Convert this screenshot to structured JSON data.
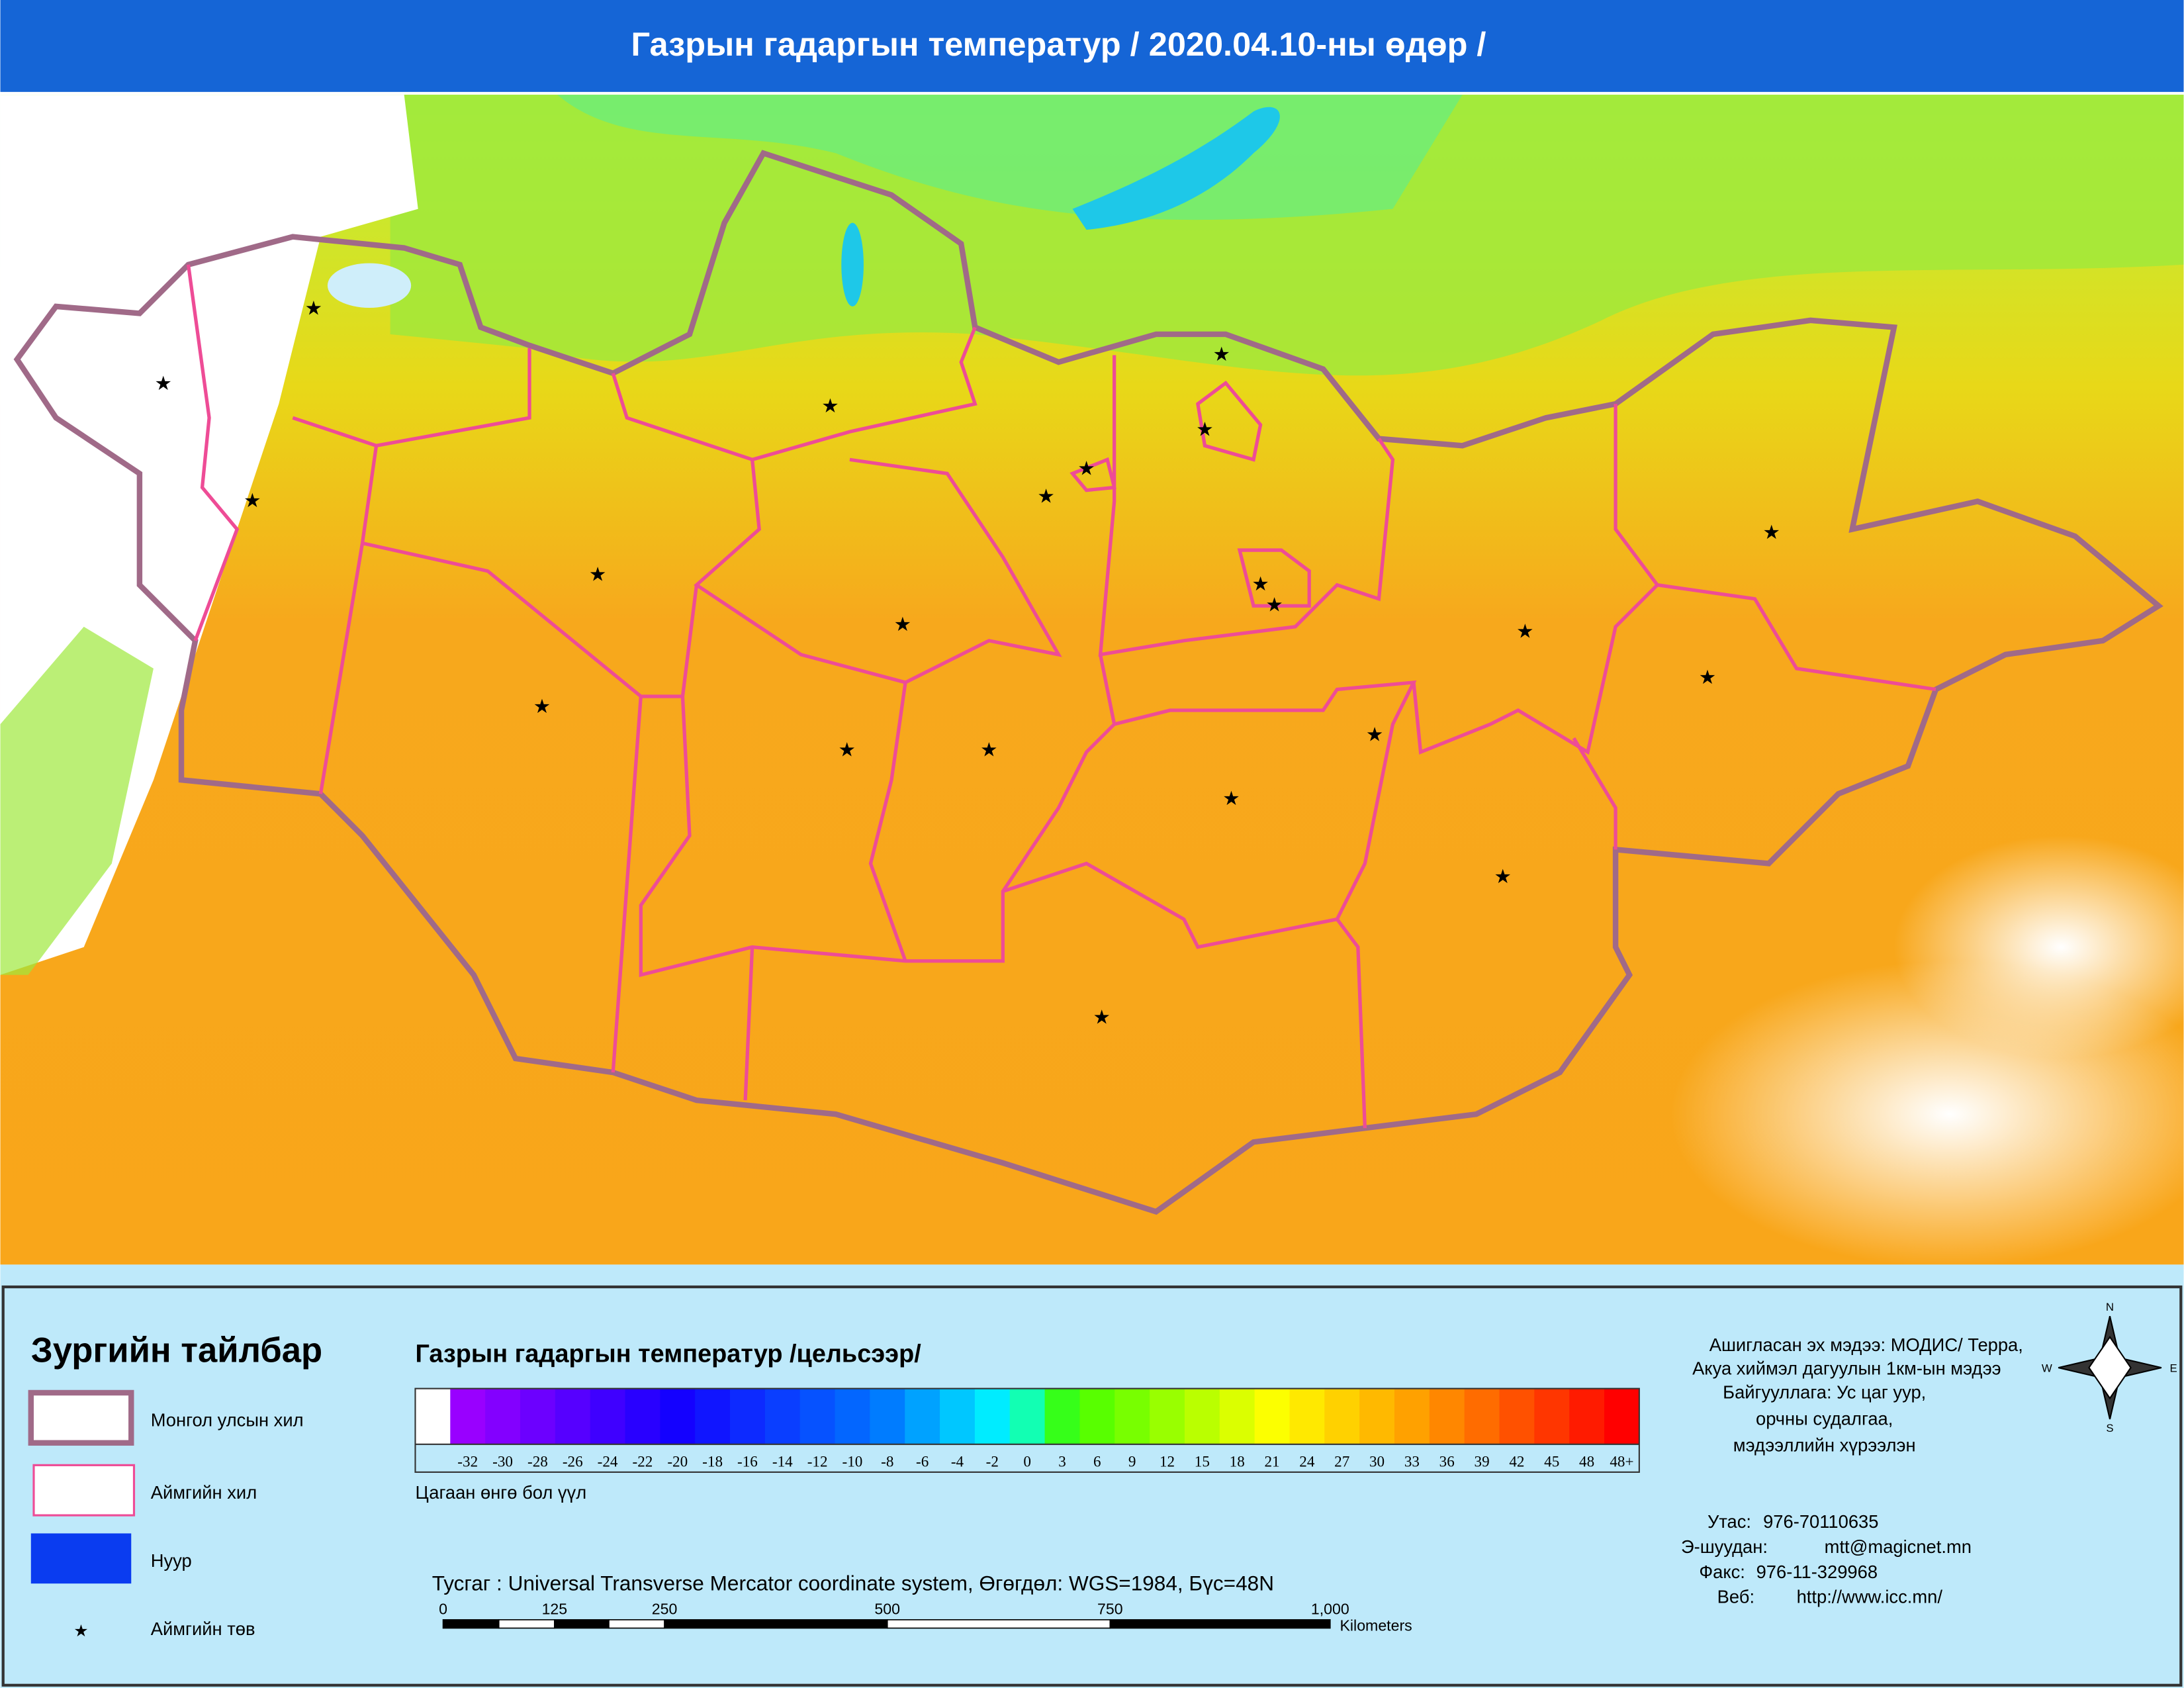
{
  "header": {
    "title": "Газрын гадаргын температур / 2020.04.10-ны өдөр /"
  },
  "legend": {
    "title": "Зургийн тайлбар",
    "items": [
      {
        "label": "Монгол улсын хил"
      },
      {
        "label": "Аймгийн хил"
      },
      {
        "label": "Нуур"
      },
      {
        "label": "Аймгийн төв"
      }
    ]
  },
  "color_scale": {
    "title": "Газрын гадаргын температур /цельсээр/",
    "labels": [
      "-32",
      "-30",
      "-28",
      "-26",
      "-24",
      "-22",
      "-20",
      "-18",
      "-16",
      "-14",
      "-12",
      "-10",
      "-8",
      "-6",
      "-4",
      "-2",
      "0",
      "3",
      "6",
      "9",
      "12",
      "15",
      "18",
      "21",
      "24",
      "27",
      "30",
      "33",
      "36",
      "39",
      "42",
      "45",
      "48",
      "48+"
    ],
    "note": "Цагаан өнгө бол үүл"
  },
  "projection": "Тусгаг : Universal Transverse Mercator coordinate system, Өгөгдөл: WGS=1984, Бүс=48N",
  "scale_bar": {
    "labels": [
      "0",
      "125",
      "250",
      "500",
      "750",
      "1,000"
    ],
    "unit": "Kilometers"
  },
  "compass": {
    "n": "N",
    "e": "E",
    "s": "S",
    "w": "W"
  },
  "source": {
    "lines": [
      "Ашигласан эх мэдээ: МОДИС/ Терра,",
      "Акуа хиймэл дагуулын 1км-ын мэдээ",
      "Байгууллага: Ус цаг уур,",
      "орчны судалгаа,",
      "мэдээллийн хүрээлэн"
    ]
  },
  "contact": [
    {
      "label": "Утас:",
      "value": "976-70110635"
    },
    {
      "label": "Э-шуудан:",
      "value": "mtt@magicnet.mn"
    },
    {
      "label": "Факс:",
      "value": "976-11-329968"
    },
    {
      "label": "Веб:",
      "value": "http://www.icc.mn/"
    }
  ]
}
